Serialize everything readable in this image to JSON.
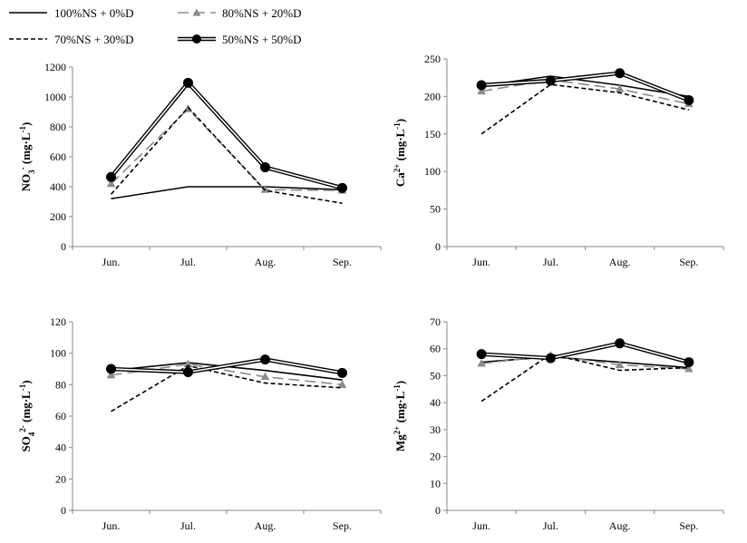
{
  "legend": [
    {
      "label": "100%NS + 0%D"
    },
    {
      "label": "80%NS + 20%D"
    },
    {
      "label": "70%NS + 30%D"
    },
    {
      "label": "50%NS + 50%D"
    }
  ],
  "styles": {
    "s100": {
      "color": "#000000",
      "dash": "",
      "marker": "none",
      "double": false
    },
    "s80": {
      "color": "#8c8c8c",
      "dash": "12,6",
      "marker": "triangle",
      "double": false
    },
    "s70": {
      "color": "#000000",
      "dash": "5,3",
      "marker": "none",
      "double": false
    },
    "s50": {
      "color": "#000000",
      "dash": "",
      "marker": "circle",
      "double": true
    }
  },
  "chart_data": [
    {
      "type": "line",
      "categories": [
        "Jun.",
        "Jul.",
        "Aug.",
        "Sep."
      ],
      "ylabel": "NO3- (mg·L-1)",
      "ylabel_parts": {
        "base": "NO",
        "sub": "3",
        "sup": "-",
        "unit": " (mg·L",
        "unit_sup": "-1",
        "unit_end": ")"
      },
      "ylim": [
        0,
        1200
      ],
      "yticks": [
        "0",
        "200",
        "400",
        "600",
        "800",
        "1000",
        "1200"
      ],
      "series": [
        {
          "name": "100%NS + 0%D",
          "style": "s100",
          "values": [
            320,
            400,
            400,
            380
          ]
        },
        {
          "name": "80%NS + 20%D",
          "style": "s80",
          "values": [
            420,
            920,
            380,
            375
          ]
        },
        {
          "name": "70%NS + 30%D",
          "style": "s70",
          "values": [
            350,
            930,
            375,
            290
          ]
        },
        {
          "name": "50%NS + 50%D",
          "style": "s50",
          "values": [
            465,
            1095,
            530,
            392
          ]
        }
      ]
    },
    {
      "type": "line",
      "categories": [
        "Jun.",
        "Jul.",
        "Aug.",
        "Sep."
      ],
      "ylabel": "Ca2+ (mg·L-1)",
      "ylabel_parts": {
        "base": "Ca",
        "sub": "",
        "sup": "2+",
        "unit": " (mg·L",
        "unit_sup": "-1",
        "unit_end": ")"
      },
      "ylim": [
        0,
        250
      ],
      "yticks": [
        "0",
        "50",
        "100",
        "150",
        "200",
        "250"
      ],
      "series": [
        {
          "name": "100%NS + 0%D",
          "style": "s100",
          "values": [
            214,
            227,
            215,
            200
          ]
        },
        {
          "name": "80%NS + 20%D",
          "style": "s80",
          "values": [
            207,
            222,
            210,
            190
          ]
        },
        {
          "name": "70%NS + 30%D",
          "style": "s70",
          "values": [
            150,
            216,
            205,
            182
          ]
        },
        {
          "name": "50%NS + 50%D",
          "style": "s50",
          "values": [
            215,
            221,
            231,
            195
          ]
        }
      ]
    },
    {
      "type": "line",
      "categories": [
        "Jun.",
        "Jul.",
        "Aug.",
        "Sep."
      ],
      "ylabel": "SO42- (mg·L-1)",
      "ylabel_parts": {
        "base": "SO",
        "sub": "4",
        "sup": "2-",
        "unit": " (mg·L",
        "unit_sup": "-1",
        "unit_end": ")"
      },
      "ylim": [
        0,
        120
      ],
      "yticks": [
        "0",
        "20",
        "40",
        "60",
        "80",
        "100",
        "120"
      ],
      "series": [
        {
          "name": "100%NS + 0%D",
          "style": "s100",
          "values": [
            89,
            94,
            89,
            83
          ]
        },
        {
          "name": "80%NS + 20%D",
          "style": "s80",
          "values": [
            86,
            93,
            85,
            80
          ]
        },
        {
          "name": "70%NS + 30%D",
          "style": "s70",
          "values": [
            63,
            92,
            81,
            78
          ]
        },
        {
          "name": "50%NS + 50%D",
          "style": "s50",
          "values": [
            90,
            88,
            96,
            87.5
          ]
        }
      ]
    },
    {
      "type": "line",
      "categories": [
        "Jun.",
        "Jul.",
        "Aug.",
        "Sep."
      ],
      "ylabel": "Mg2+ (mg·L-1)",
      "ylabel_parts": {
        "base": "Mg",
        "sub": "",
        "sup": "2+",
        "unit": " (mg·L",
        "unit_sup": "-1",
        "unit_end": ")"
      },
      "ylim": [
        0,
        70
      ],
      "yticks": [
        "0",
        "10",
        "20",
        "30",
        "40",
        "50",
        "60",
        "70"
      ],
      "series": [
        {
          "name": "100%NS + 0%D",
          "style": "s100",
          "values": [
            55,
            57,
            55,
            53
          ]
        },
        {
          "name": "80%NS + 20%D",
          "style": "s80",
          "values": [
            54.5,
            57.5,
            54,
            52.5
          ]
        },
        {
          "name": "70%NS + 30%D",
          "style": "s70",
          "values": [
            40.5,
            58,
            52,
            53
          ]
        },
        {
          "name": "50%NS + 50%D",
          "style": "s50",
          "values": [
            58,
            56.5,
            62,
            55
          ]
        }
      ]
    }
  ]
}
